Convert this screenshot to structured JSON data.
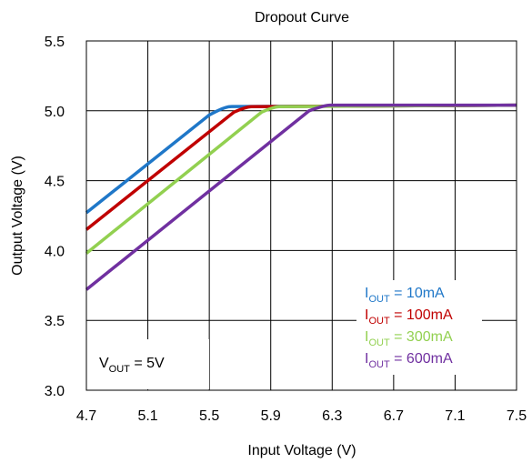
{
  "chart_data": {
    "type": "line",
    "title": "Dropout Curve",
    "xlabel": "Input Voltage (V)",
    "ylabel": "Output Voltage (V)",
    "xlim": [
      4.7,
      7.5
    ],
    "ylim": [
      3.0,
      5.5
    ],
    "x_ticks": [
      "4.7",
      "5.1",
      "5.5",
      "5.9",
      "6.3",
      "6.7",
      "7.1",
      "7.5"
    ],
    "y_ticks": [
      "3.0",
      "3.5",
      "4.0",
      "4.5",
      "5.0",
      "5.5"
    ],
    "grid": true,
    "legend_placement": "bottom-right",
    "annotation": {
      "prefix": "V",
      "sub": "OUT",
      "suffix": " = 5V"
    },
    "series": [
      {
        "name": "I_OUT = 10mA",
        "label_prefix": "I",
        "label_sub": "OUT",
        "label_suffix": " = 10mA",
        "color": "#1f77c8",
        "points": [
          [
            4.7,
            4.27
          ],
          [
            5.5,
            4.97
          ],
          [
            5.6,
            5.03
          ],
          [
            7.5,
            5.04
          ]
        ]
      },
      {
        "name": "I_OUT = 100mA",
        "label_prefix": "I",
        "label_sub": "OUT",
        "label_suffix": " = 100mA",
        "color": "#c00000",
        "points": [
          [
            4.7,
            4.15
          ],
          [
            5.66,
            4.99
          ],
          [
            5.74,
            5.03
          ],
          [
            7.5,
            5.04
          ]
        ]
      },
      {
        "name": "I_OUT = 300mA",
        "label_prefix": "I",
        "label_sub": "OUT",
        "label_suffix": " = 300mA",
        "color": "#92d050",
        "points": [
          [
            4.7,
            3.98
          ],
          [
            5.84,
            4.99
          ],
          [
            5.92,
            5.03
          ],
          [
            7.5,
            5.04
          ]
        ]
      },
      {
        "name": "I_OUT = 600mA",
        "label_prefix": "I",
        "label_sub": "OUT",
        "label_suffix": " = 600mA",
        "color": "#7030a0",
        "points": [
          [
            4.7,
            3.72
          ],
          [
            6.15,
            5.0
          ],
          [
            6.25,
            5.04
          ],
          [
            7.5,
            5.04
          ]
        ]
      }
    ]
  }
}
